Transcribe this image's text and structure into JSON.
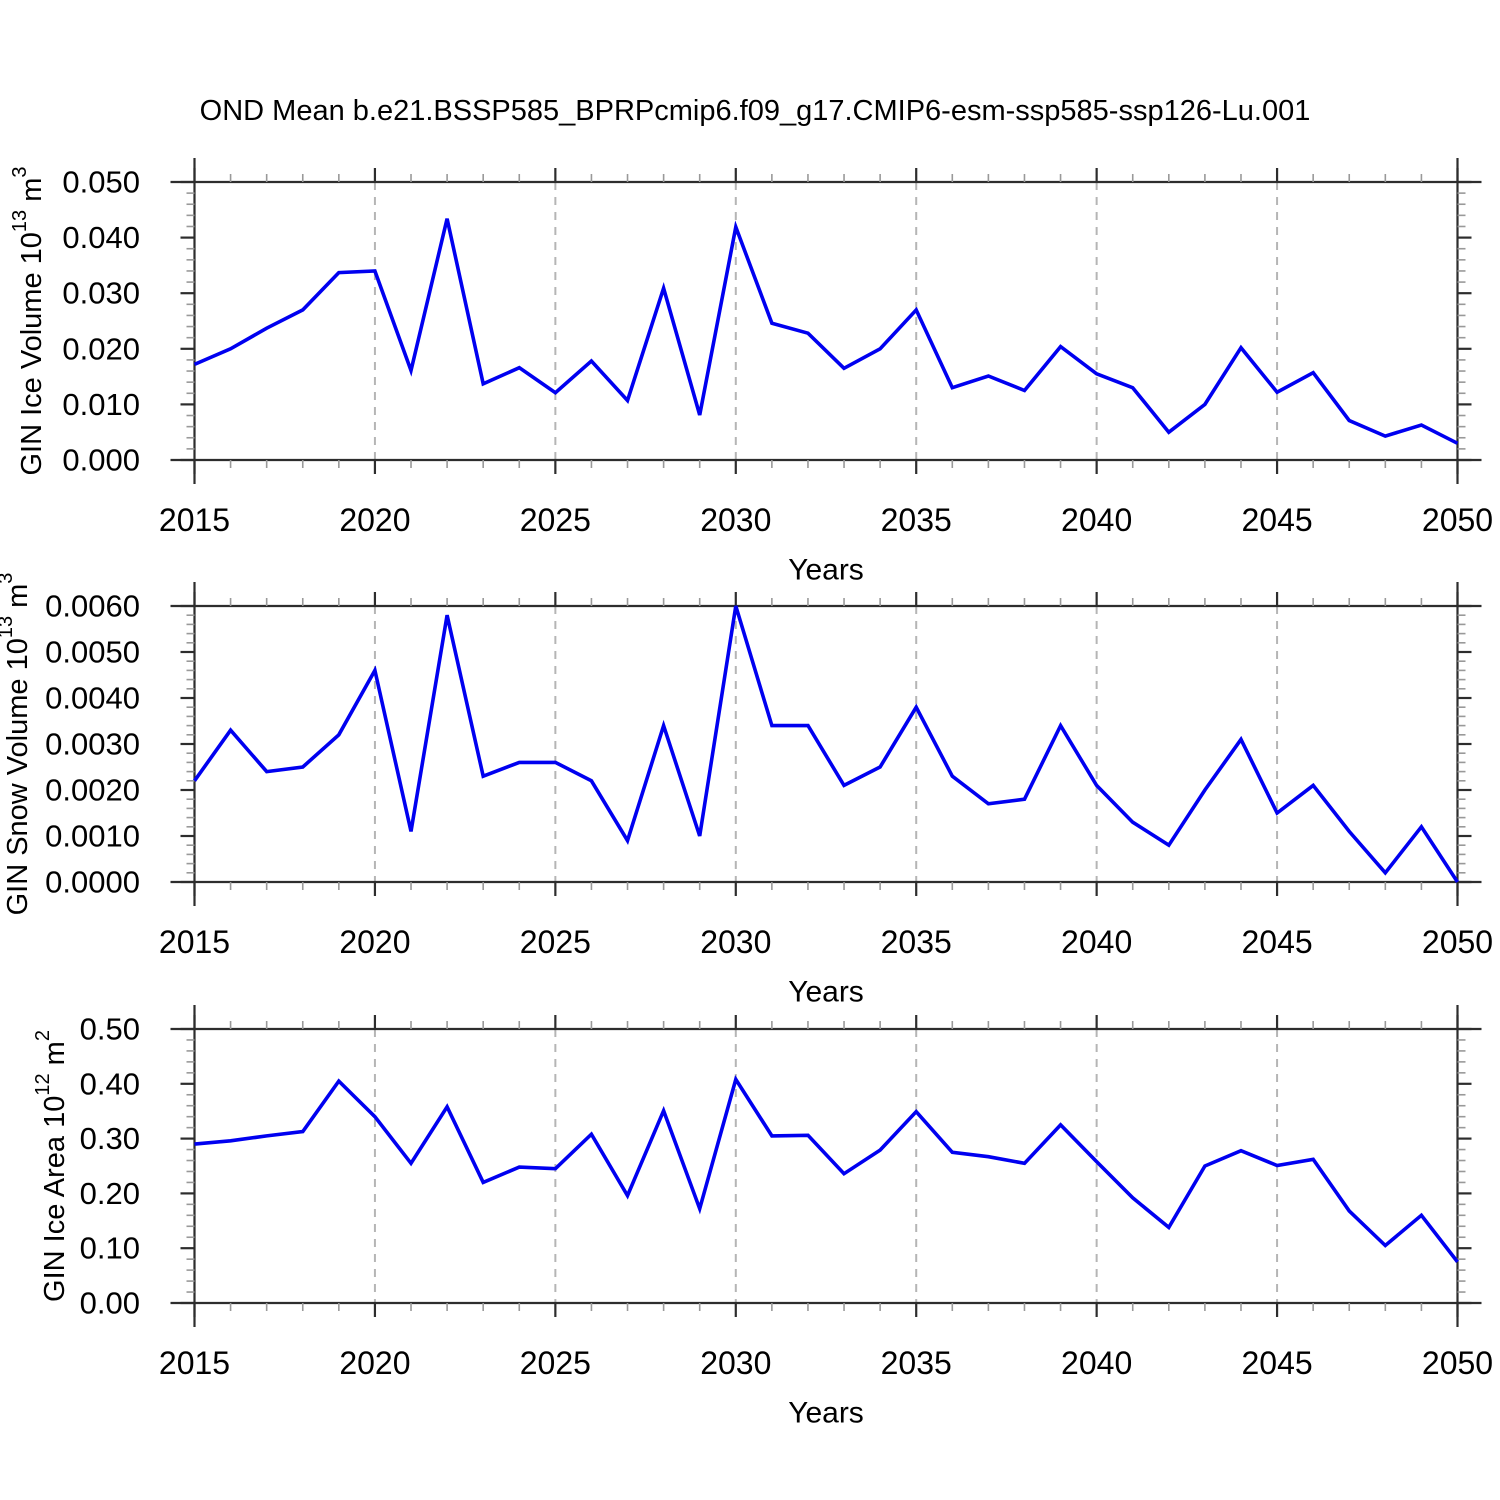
{
  "title": "OND Mean b.e21.BSSP585_BPRPcmip6.f09_g17.CMIP6-esm-ssp585-ssp126-Lu.001",
  "x_axis": {
    "label": "Years",
    "start": 2015,
    "end": 2050,
    "major_step": 5,
    "minor_step": 1,
    "tick_labels": [
      "2015",
      "2020",
      "2025",
      "2030",
      "2035",
      "2040",
      "2045",
      "2050"
    ],
    "gridlines_at": [
      2020,
      2025,
      2030,
      2035,
      2040,
      2045
    ]
  },
  "style": {
    "line_color": "#0000f0",
    "frame_color": "#2d2d2d",
    "minor_tick_color": "#999999",
    "gridline_color": "#b5b5b5",
    "text_color": "#000000",
    "background": "#ffffff"
  },
  "chart_data": [
    {
      "type": "line",
      "name": "gin-ice-volume",
      "ylabel": "GIN Ice Volume 10^13 m^3",
      "ylabel_parts": {
        "base": "GIN Ice Volume 10",
        "exp": "13",
        "unit": " m",
        "unit_exp": "3"
      },
      "xlabel": "Years",
      "ylim": [
        0,
        0.05
      ],
      "ytick_step": 0.01,
      "yminor_step": 0.002,
      "ytick_decimals": 3,
      "x": [
        2015,
        2016,
        2017,
        2018,
        2019,
        2020,
        2021,
        2022,
        2023,
        2024,
        2025,
        2026,
        2027,
        2028,
        2029,
        2030,
        2031,
        2032,
        2033,
        2034,
        2035,
        2036,
        2037,
        2038,
        2039,
        2040,
        2041,
        2042,
        2043,
        2044,
        2045,
        2046,
        2047,
        2048,
        2049,
        2050
      ],
      "values": [
        0.0172,
        0.02,
        0.0237,
        0.027,
        0.0337,
        0.034,
        0.0161,
        0.0434,
        0.0137,
        0.0166,
        0.0121,
        0.0178,
        0.0107,
        0.0309,
        0.0081,
        0.0419,
        0.0246,
        0.0228,
        0.0165,
        0.02,
        0.027,
        0.013,
        0.0151,
        0.0125,
        0.0204,
        0.0155,
        0.013,
        0.005,
        0.01,
        0.0202,
        0.0122,
        0.0157,
        0.0071,
        0.0043,
        0.0063,
        0.003
      ]
    },
    {
      "type": "line",
      "name": "gin-snow-volume",
      "ylabel": "GIN Snow Volume 10^13 m^3",
      "ylabel_parts": {
        "base": "GIN Snow Volume 10",
        "exp": "13",
        "unit": " m",
        "unit_exp": "3"
      },
      "xlabel": "Years",
      "ylim": [
        0,
        0.006
      ],
      "ytick_step": 0.001,
      "yminor_step": 0.0002,
      "ytick_decimals": 4,
      "x": [
        2015,
        2016,
        2017,
        2018,
        2019,
        2020,
        2021,
        2022,
        2023,
        2024,
        2025,
        2026,
        2027,
        2028,
        2029,
        2030,
        2031,
        2032,
        2033,
        2034,
        2035,
        2036,
        2037,
        2038,
        2039,
        2040,
        2041,
        2042,
        2043,
        2044,
        2045,
        2046,
        2047,
        2048,
        2049,
        2050
      ],
      "values": [
        0.0022,
        0.0033,
        0.0024,
        0.0025,
        0.0032,
        0.0046,
        0.0011,
        0.0058,
        0.0023,
        0.0026,
        0.0026,
        0.0022,
        0.0009,
        0.0034,
        0.001,
        0.006,
        0.0034,
        0.0034,
        0.0021,
        0.0025,
        0.0038,
        0.0023,
        0.0017,
        0.0018,
        0.0034,
        0.0021,
        0.0013,
        0.0008,
        0.002,
        0.0031,
        0.0015,
        0.0021,
        0.0011,
        0.0002,
        0.0012,
        0.0
      ]
    },
    {
      "type": "line",
      "name": "gin-ice-area",
      "ylabel": "GIN Ice Area 10^12 m^2",
      "ylabel_parts": {
        "base": "GIN Ice Area 10",
        "exp": "12",
        "unit": " m",
        "unit_exp": "2"
      },
      "xlabel": "Years",
      "ylim": [
        0,
        0.5
      ],
      "ytick_step": 0.1,
      "yminor_step": 0.02,
      "ytick_decimals": 2,
      "x": [
        2015,
        2016,
        2017,
        2018,
        2019,
        2020,
        2021,
        2022,
        2023,
        2024,
        2025,
        2026,
        2027,
        2028,
        2029,
        2030,
        2031,
        2032,
        2033,
        2034,
        2035,
        2036,
        2037,
        2038,
        2039,
        2040,
        2041,
        2042,
        2043,
        2044,
        2045,
        2046,
        2047,
        2048,
        2049,
        2050
      ],
      "values": [
        0.29,
        0.296,
        0.305,
        0.313,
        0.405,
        0.34,
        0.255,
        0.358,
        0.22,
        0.248,
        0.245,
        0.308,
        0.196,
        0.351,
        0.172,
        0.408,
        0.305,
        0.306,
        0.236,
        0.279,
        0.349,
        0.275,
        0.267,
        0.255,
        0.325,
        0.258,
        0.192,
        0.138,
        0.25,
        0.278,
        0.251,
        0.262,
        0.168,
        0.105,
        0.16,
        0.075
      ]
    }
  ]
}
